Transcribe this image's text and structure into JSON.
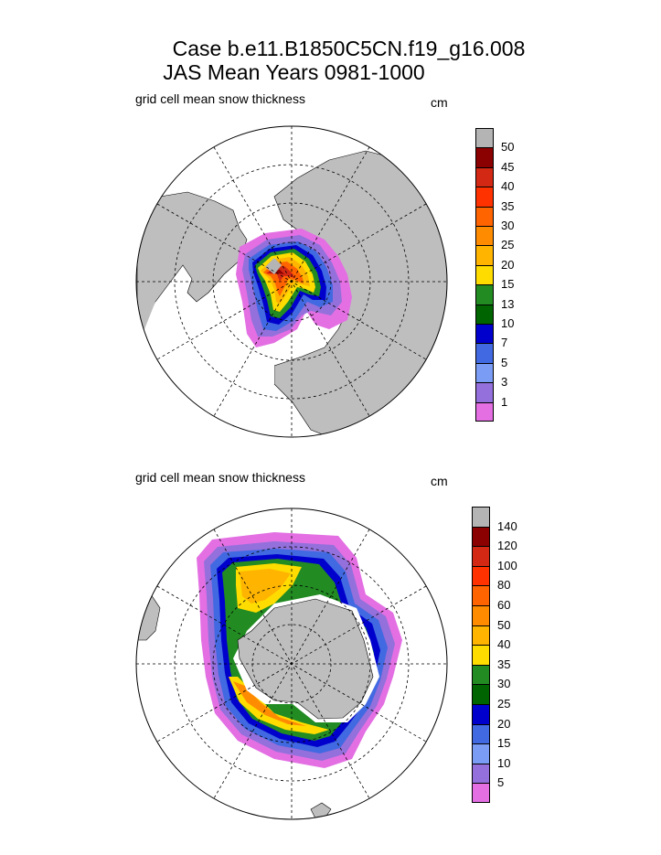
{
  "title": {
    "line1": "Case b.e11.B1850C5CN.f19_g16.008",
    "line2": "JAS Mean    Years 0981-1000"
  },
  "panels": [
    {
      "name": "north",
      "label": "grid cell mean snow thickness",
      "units": "cm",
      "hemisphere": "Northern",
      "colorbar": {
        "levels": [
          "50",
          "45",
          "40",
          "35",
          "30",
          "25",
          "20",
          "15",
          "13",
          "10",
          "7",
          "5",
          "3",
          "1"
        ],
        "colors": [
          "#b4b4b4",
          "#8b0000",
          "#d22814",
          "#ff3200",
          "#ff6400",
          "#ff8c00",
          "#ffb400",
          "#ffdc00",
          "#228b22",
          "#006400",
          "#0000cd",
          "#4169e1",
          "#7b9cf5",
          "#9370db",
          "#e36fe3"
        ]
      }
    },
    {
      "name": "south",
      "label": "grid cell mean snow thickness",
      "units": "cm",
      "hemisphere": "Southern",
      "colorbar": {
        "levels": [
          "140",
          "120",
          "100",
          "80",
          "60",
          "50",
          "40",
          "35",
          "30",
          "25",
          "20",
          "15",
          "10",
          "5"
        ],
        "colors": [
          "#b4b4b4",
          "#8b0000",
          "#d22814",
          "#ff3200",
          "#ff6400",
          "#ff8c00",
          "#ffb400",
          "#ffdc00",
          "#228b22",
          "#006400",
          "#0000cd",
          "#4169e1",
          "#7b9cf5",
          "#9370db",
          "#e36fe3"
        ]
      }
    }
  ]
}
